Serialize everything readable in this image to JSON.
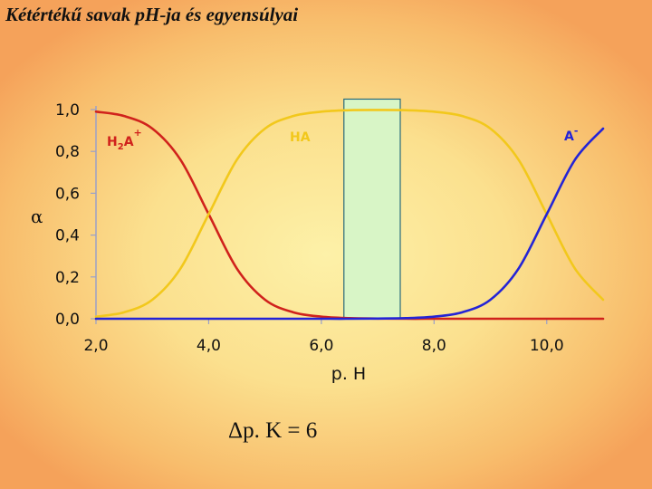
{
  "slide": {
    "title": "Kétértékű savak pH-ja és egyensúlyai",
    "formula": "Δp. K = 6"
  },
  "chart_data": {
    "type": "line",
    "title": "",
    "xlabel": "p. H",
    "ylabel": "α",
    "xlim": [
      2.0,
      11.0
    ],
    "ylim": [
      0.0,
      1.0
    ],
    "x_ticks": [
      "2,0",
      "4,0",
      "6,0",
      "8,0",
      "10,0"
    ],
    "x_tick_values": [
      2,
      4,
      6,
      8,
      10
    ],
    "y_ticks": [
      "0,0",
      "0,2",
      "0,4",
      "0,6",
      "0,8",
      "1,0"
    ],
    "y_tick_values": [
      0,
      0.2,
      0.4,
      0.6,
      0.8,
      1.0
    ],
    "pKa1": 4.0,
    "pKa2": 10.0,
    "x": [
      2.0,
      2.5,
      3.0,
      3.5,
      4.0,
      4.5,
      5.0,
      5.5,
      6.0,
      6.5,
      7.0,
      7.5,
      8.0,
      8.5,
      9.0,
      9.5,
      10.0,
      10.5,
      11.0
    ],
    "series": [
      {
        "name": "H2A+",
        "label_main": "H",
        "label_sub": "2",
        "label_main2": "A",
        "label_sup": "+",
        "color": "#d0221c",
        "values": [
          0.99,
          0.969,
          0.909,
          0.76,
          0.5,
          0.24,
          0.091,
          0.031,
          0.01,
          0.003,
          0.001,
          0.0,
          0.0,
          0.0,
          0.0,
          0.0,
          0.0,
          0.0,
          0.0
        ]
      },
      {
        "name": "HA",
        "label_main": "HA",
        "color": "#f2c81c",
        "values": [
          0.01,
          0.031,
          0.091,
          0.24,
          0.5,
          0.76,
          0.909,
          0.969,
          0.99,
          0.997,
          0.998,
          0.997,
          0.99,
          0.969,
          0.909,
          0.76,
          0.5,
          0.24,
          0.091
        ]
      },
      {
        "name": "A-",
        "label_main": "A",
        "label_sup": "-",
        "color": "#2424d6",
        "values": [
          0.0,
          0.0,
          0.0,
          0.0,
          0.0,
          0.0,
          0.0,
          0.0,
          0.0,
          0.0,
          0.001,
          0.003,
          0.01,
          0.031,
          0.091,
          0.24,
          0.5,
          0.76,
          0.909
        ]
      }
    ],
    "highlight_region": {
      "x_from": 6.4,
      "x_to": 7.4,
      "y_from": 0.0,
      "y_to": 1.05,
      "fill": "#d8f5c6",
      "stroke": "#2a6a7a"
    },
    "grid": false,
    "colors": {
      "axis": "#9aa0c8",
      "zero_line": "#d0221c",
      "tick_text": "#111111"
    }
  }
}
